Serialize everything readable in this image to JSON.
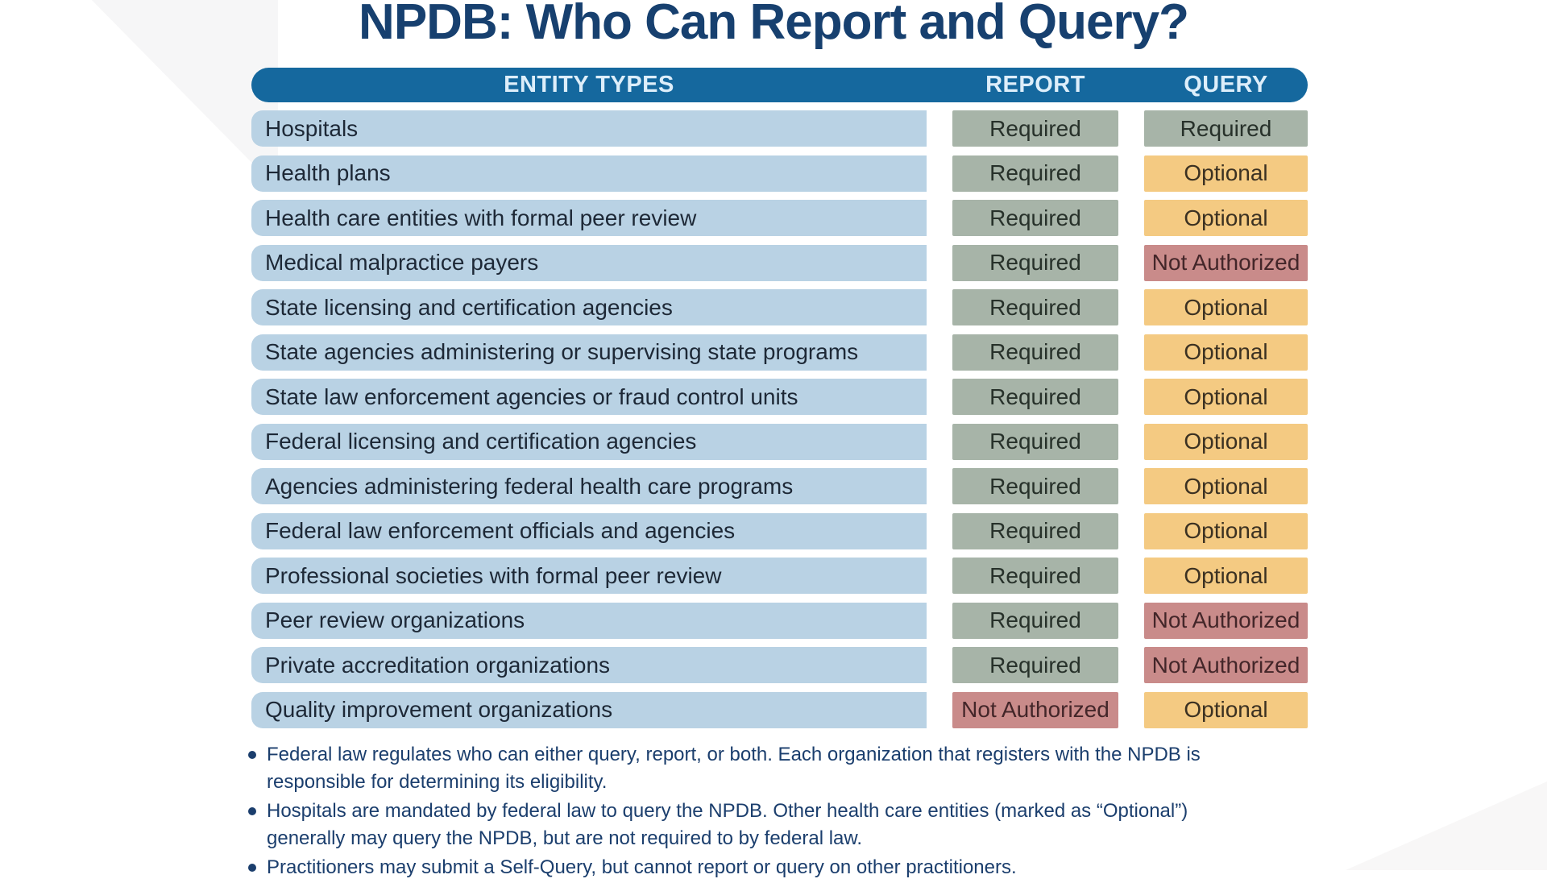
{
  "title": "NPDB: Who Can Report and Query?",
  "colors": {
    "header_bar": "#15689e",
    "header_text": "#ddeefa",
    "row_bg": "#b9d2e4",
    "row_text": "#1d2836",
    "title_text": "#17406f",
    "footnote_text": "#1b3e6d",
    "badges": {
      "Required": {
        "bg": "#a7b4a8",
        "text": "#27312a"
      },
      "Optional": {
        "bg": "#f4ca82",
        "text": "#3b3122"
      },
      "Not Authorized": {
        "bg": "#c98b8a",
        "text": "#432629"
      }
    }
  },
  "table": {
    "headers": [
      "ENTITY TYPES",
      "REPORT",
      "QUERY"
    ],
    "rows": [
      {
        "entity": "Hospitals",
        "report": "Required",
        "query": "Required"
      },
      {
        "entity": "Health plans",
        "report": "Required",
        "query": "Optional"
      },
      {
        "entity": "Health care entities with formal peer review",
        "report": "Required",
        "query": "Optional"
      },
      {
        "entity": "Medical malpractice payers",
        "report": "Required",
        "query": "Not Authorized"
      },
      {
        "entity": "State licensing and certification agencies",
        "report": "Required",
        "query": "Optional"
      },
      {
        "entity": "State agencies administering or supervising state programs",
        "report": "Required",
        "query": "Optional"
      },
      {
        "entity": "State law enforcement agencies or fraud control units",
        "report": "Required",
        "query": "Optional"
      },
      {
        "entity": "Federal licensing and certification agencies",
        "report": "Required",
        "query": "Optional"
      },
      {
        "entity": "Agencies administering federal health care programs",
        "report": "Required",
        "query": "Optional"
      },
      {
        "entity": "Federal law enforcement officials and agencies",
        "report": "Required",
        "query": "Optional"
      },
      {
        "entity": "Professional societies with formal peer review",
        "report": "Required",
        "query": "Optional"
      },
      {
        "entity": "Peer review organizations",
        "report": "Required",
        "query": "Not Authorized"
      },
      {
        "entity": "Private accreditation organizations",
        "report": "Required",
        "query": "Not Authorized"
      },
      {
        "entity": "Quality improvement organizations",
        "report": "Not Authorized",
        "query": "Optional"
      }
    ]
  },
  "footnotes": [
    "Federal law regulates who can either query, report, or both. Each organization that registers with the NPDB is responsible for determining its eligibility.",
    "Hospitals are mandated by federal law to query the NPDB. Other health care entities (marked as “Optional”) generally may query the NPDB, but are not required to by federal law.",
    "Practitioners may submit a Self-Query, but cannot report or query on other practitioners."
  ],
  "chart_data": {
    "type": "table",
    "title": "NPDB: Who Can Report and Query?",
    "columns": [
      "ENTITY TYPES",
      "REPORT",
      "QUERY"
    ],
    "rows": [
      [
        "Hospitals",
        "Required",
        "Required"
      ],
      [
        "Health plans",
        "Required",
        "Optional"
      ],
      [
        "Health care entities with formal peer review",
        "Required",
        "Optional"
      ],
      [
        "Medical malpractice payers",
        "Required",
        "Not Authorized"
      ],
      [
        "State licensing and certification agencies",
        "Required",
        "Optional"
      ],
      [
        "State agencies administering or supervising state programs",
        "Required",
        "Optional"
      ],
      [
        "State law enforcement agencies or fraud control units",
        "Required",
        "Optional"
      ],
      [
        "Federal licensing and certification agencies",
        "Required",
        "Optional"
      ],
      [
        "Agencies administering federal health care programs",
        "Required",
        "Optional"
      ],
      [
        "Federal law enforcement officials and agencies",
        "Required",
        "Optional"
      ],
      [
        "Professional societies with formal peer review",
        "Required",
        "Optional"
      ],
      [
        "Peer review organizations",
        "Required",
        "Not Authorized"
      ],
      [
        "Private accreditation organizations",
        "Required",
        "Not Authorized"
      ],
      [
        "Quality improvement organizations",
        "Not Authorized",
        "Optional"
      ]
    ],
    "legend": {
      "Required": "sage green badge",
      "Optional": "gold badge",
      "Not Authorized": "rose badge"
    }
  }
}
